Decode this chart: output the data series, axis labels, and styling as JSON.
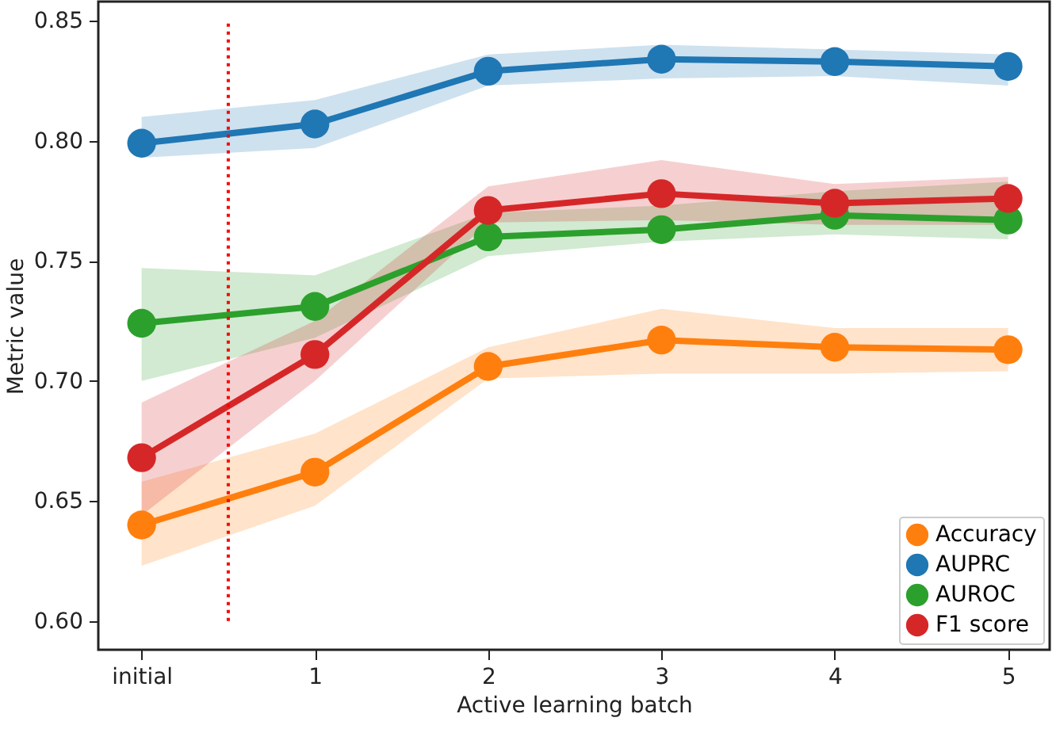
{
  "chart_data": {
    "type": "line",
    "xlabel": "Active learning batch",
    "ylabel": "Metric value",
    "x": [
      0,
      1,
      2,
      3,
      4,
      5
    ],
    "xlim": [
      -0.25,
      5.24
    ],
    "xticks": [
      {
        "value": 0,
        "label": "initial"
      },
      1,
      2,
      3,
      4,
      5
    ],
    "ylim": [
      0.588,
      0.858
    ],
    "yticks": [
      {
        "value": 0.6,
        "label": "0.60"
      },
      0.65,
      {
        "value": 0.7,
        "label": "0.70"
      },
      0.75,
      {
        "value": 0.8,
        "label": "0.80"
      },
      0.85
    ],
    "series": [
      {
        "name": "Accuracy",
        "color": "#ff7f0e",
        "values": [
          0.64,
          0.662,
          0.706,
          0.717,
          0.714,
          0.713
        ],
        "lower": [
          0.623,
          0.648,
          0.701,
          0.703,
          0.703,
          0.704
        ],
        "upper": [
          0.658,
          0.678,
          0.714,
          0.73,
          0.722,
          0.722
        ]
      },
      {
        "name": "AUPRC",
        "color": "#1f77b4",
        "values": [
          0.799,
          0.807,
          0.829,
          0.834,
          0.833,
          0.831
        ],
        "lower": [
          0.793,
          0.797,
          0.823,
          0.826,
          0.827,
          0.823
        ],
        "upper": [
          0.81,
          0.817,
          0.836,
          0.84,
          0.838,
          0.836
        ]
      },
      {
        "name": "AUROC",
        "color": "#2ca02c",
        "values": [
          0.724,
          0.731,
          0.76,
          0.763,
          0.769,
          0.767
        ],
        "lower": [
          0.7,
          0.718,
          0.752,
          0.758,
          0.761,
          0.759
        ],
        "upper": [
          0.747,
          0.744,
          0.77,
          0.773,
          0.779,
          0.783
        ]
      },
      {
        "name": "F1 score",
        "color": "#d62728",
        "values": [
          0.668,
          0.711,
          0.771,
          0.778,
          0.774,
          0.776
        ],
        "lower": [
          0.644,
          0.7,
          0.766,
          0.767,
          0.765,
          0.765
        ],
        "upper": [
          0.691,
          0.725,
          0.781,
          0.792,
          0.782,
          0.785
        ]
      }
    ],
    "ref_lines": [
      {
        "axis": "x",
        "value": 0.5,
        "color": "#ff0000",
        "line_style": "dotted"
      }
    ],
    "marker": "circle",
    "line_style": "solid",
    "grid": false,
    "legend": "bottom right"
  }
}
